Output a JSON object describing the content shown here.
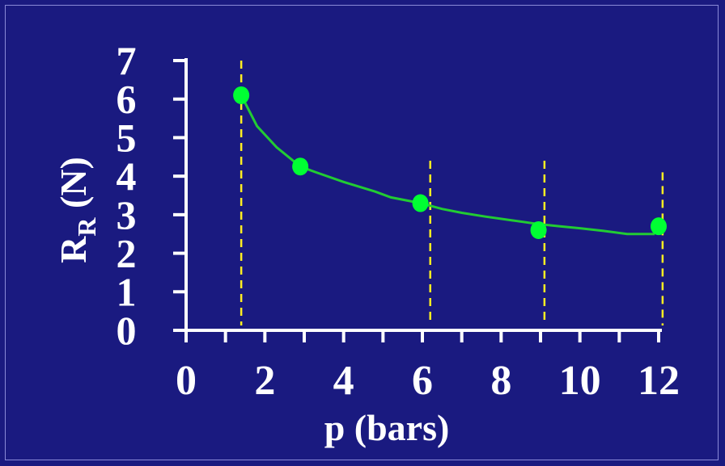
{
  "chart_data": {
    "type": "scatter",
    "xlabel": "p (bars)",
    "ylabel_main": "R",
    "ylabel_sub": "R",
    "ylabel_unit": " (N)",
    "xlim": [
      0,
      12
    ],
    "ylim": [
      0,
      7
    ],
    "xticks": [
      0,
      2,
      4,
      6,
      8,
      10,
      12
    ],
    "yticks": [
      0,
      1,
      2,
      3,
      4,
      5,
      6,
      7
    ],
    "grid": false,
    "legend": "none",
    "colors": {
      "background": "#1a1a80",
      "axes": "#ffffff",
      "points": "#00ff33",
      "curve": "#22cc33",
      "guides": "#ffee22"
    },
    "points": [
      {
        "x": 1.4,
        "y": 6.1
      },
      {
        "x": 2.9,
        "y": 4.25
      },
      {
        "x": 5.95,
        "y": 3.3
      },
      {
        "x": 8.95,
        "y": 2.6
      },
      {
        "x": 12.0,
        "y": 2.7
      }
    ],
    "curve": [
      {
        "x": 1.4,
        "y": 6.1
      },
      {
        "x": 1.8,
        "y": 5.3
      },
      {
        "x": 2.3,
        "y": 4.75
      },
      {
        "x": 2.9,
        "y": 4.25
      },
      {
        "x": 3.3,
        "y": 4.1
      },
      {
        "x": 4.0,
        "y": 3.85
      },
      {
        "x": 4.8,
        "y": 3.6
      },
      {
        "x": 5.2,
        "y": 3.45
      },
      {
        "x": 5.95,
        "y": 3.3
      },
      {
        "x": 6.5,
        "y": 3.15
      },
      {
        "x": 7.0,
        "y": 3.05
      },
      {
        "x": 7.6,
        "y": 2.95
      },
      {
        "x": 8.3,
        "y": 2.85
      },
      {
        "x": 9.0,
        "y": 2.75
      },
      {
        "x": 9.5,
        "y": 2.7
      },
      {
        "x": 10.0,
        "y": 2.65
      },
      {
        "x": 10.6,
        "y": 2.58
      },
      {
        "x": 11.2,
        "y": 2.5
      },
      {
        "x": 11.9,
        "y": 2.5
      }
    ],
    "guide_lines": [
      {
        "x": 1.4,
        "y_top": 7.0
      },
      {
        "x": 6.2,
        "y_top": 4.4
      },
      {
        "x": 9.1,
        "y_top": 4.4
      },
      {
        "x": 12.1,
        "y_top": 4.1
      }
    ]
  }
}
